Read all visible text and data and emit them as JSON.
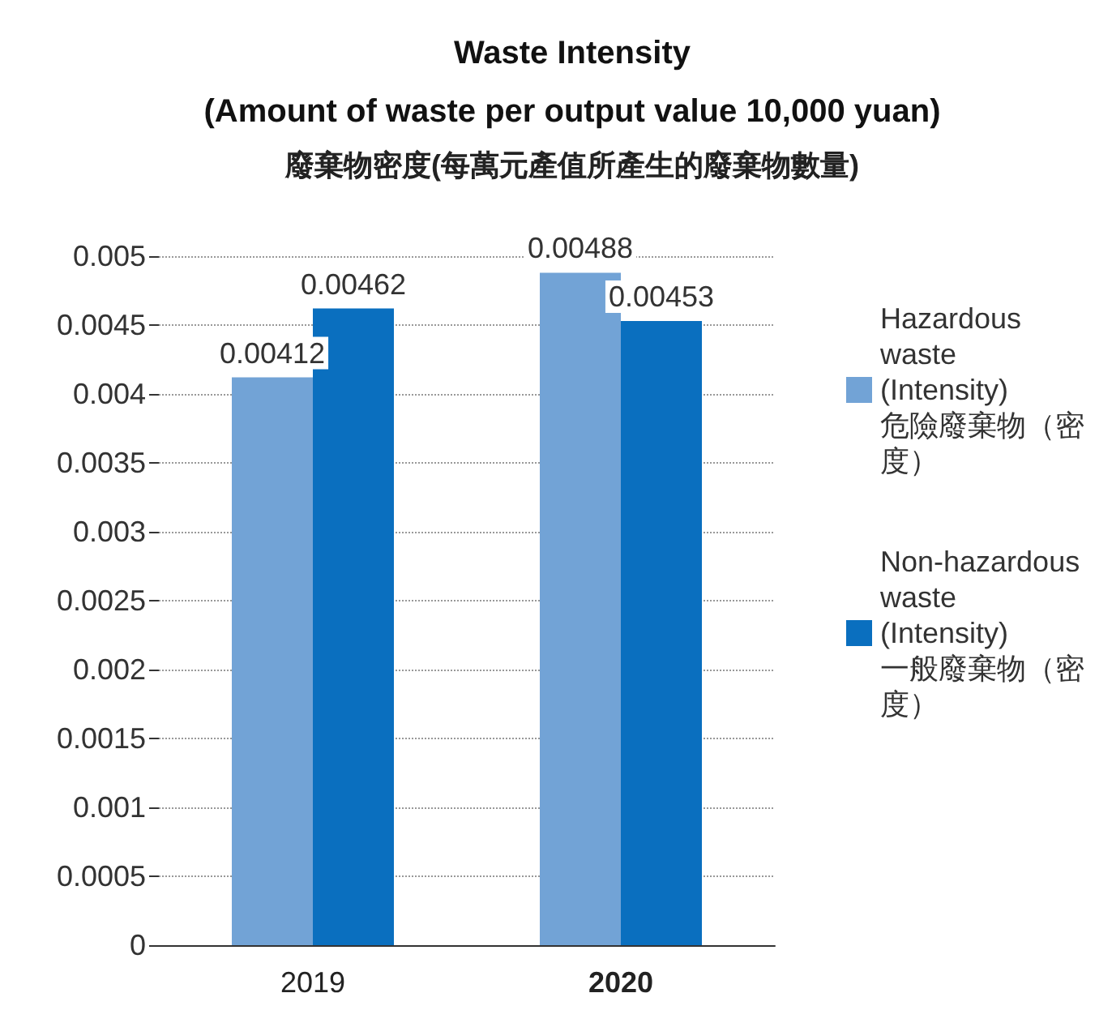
{
  "chart_data": {
    "type": "bar",
    "title": "Waste Intensity\n(Amount of waste per output value 10,000 yuan)",
    "subtitle": "廢棄物密度(每萬元產值所產生的廢棄物數量)",
    "categories": [
      "2019",
      "2020"
    ],
    "series": [
      {
        "name": "Hazardous\nwaste\n(Intensity)\n危險廢棄物（密度）",
        "color": "#72a3d6",
        "values": [
          0.00412,
          0.00488
        ]
      },
      {
        "name": "Non-hazardous\nwaste\n(Intensity)\n一般廢棄物（密度）",
        "color": "#0a6fbf",
        "values": [
          0.00462,
          0.00453
        ]
      }
    ],
    "ylim": [
      0,
      0.005
    ],
    "yticks": [
      0,
      0.0005,
      0.001,
      0.0015,
      0.002,
      0.0025,
      0.003,
      0.0035,
      0.004,
      0.0045,
      0.005
    ],
    "grid": "y",
    "legend": "right",
    "data_labels": true
  }
}
